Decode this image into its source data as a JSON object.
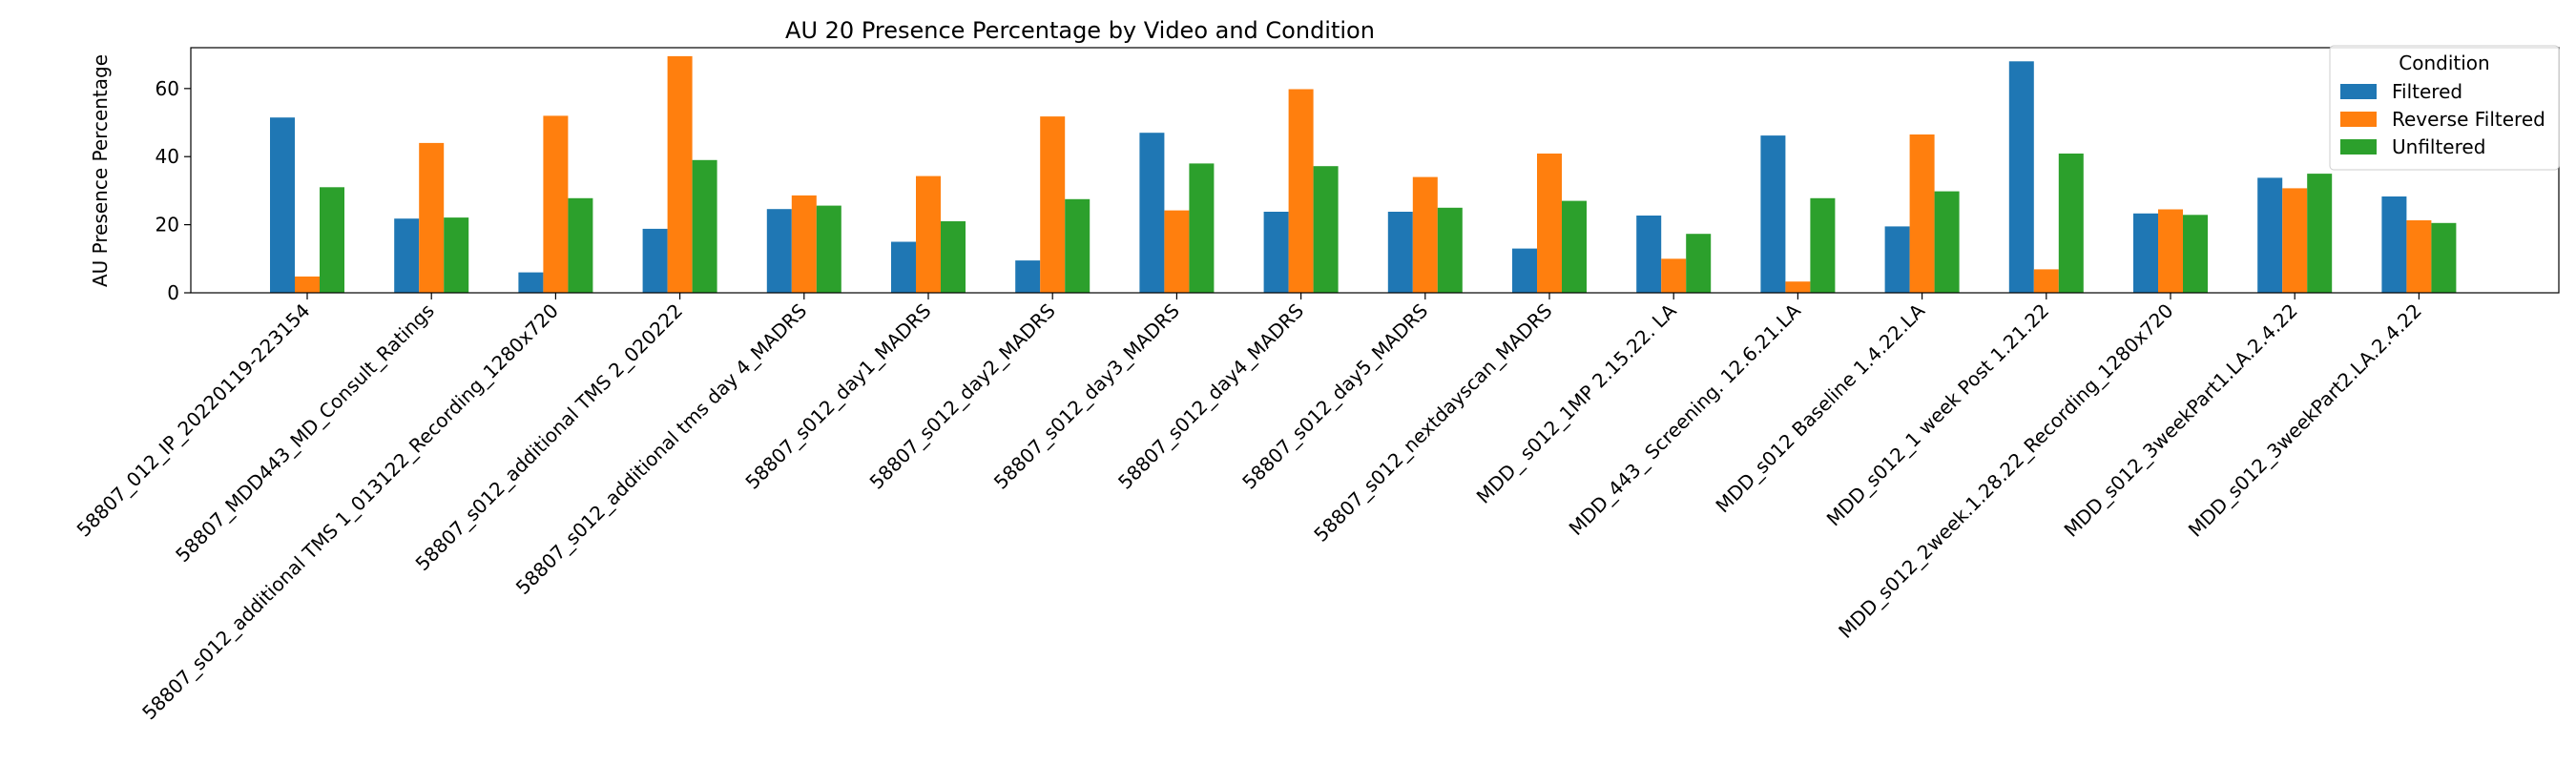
{
  "chart_data": {
    "type": "bar",
    "title": "AU 20 Presence Percentage by Video and Condition",
    "xlabel": "",
    "ylabel": "AU Presence Percentage",
    "ylim": [
      0,
      72
    ],
    "yticks": [
      0,
      20,
      40,
      60
    ],
    "grid": false,
    "legend": {
      "title": "Condition",
      "placement": "top-right"
    },
    "categories": [
      "58807_012_IP_20220119-223154",
      "58807_MDD443_MD_Consult_Ratings",
      "58807_s012_additional TMS 1_013122_Recording_1280x720",
      "58807_s012_additional TMS 2_020222",
      "58807_s012_additional tms day 4_MADRS",
      "58807_s012_day1_MADRS",
      "58807_s012_day2_MADRS",
      "58807_s012_day3_MADRS",
      "58807_s012_day4_MADRS",
      "58807_s012_day5_MADRS",
      "58807_s012_nextdayscan_MADRS",
      "MDD_ s012_1MP  2.15.22. LA",
      "MDD_443_ Screening. 12.6.21.LA",
      "MDD_s012 Baseline 1.4.22.LA",
      "MDD_s012_1 week Post 1.21.22",
      "MDD_s012_2week.1.28.22_Recording_1280x720",
      "MDD_s012_3weekPart1.LA.2.4.22",
      "MDD_s012_3weekPart2.LA.2.4.22"
    ],
    "series": [
      {
        "name": "Filtered",
        "color": "#1f77b4",
        "values": [
          51.5,
          21.8,
          6.0,
          18.8,
          24.6,
          15.0,
          9.5,
          47.0,
          23.8,
          23.8,
          13.0,
          22.7,
          46.2,
          19.5,
          68.0,
          23.3,
          33.8,
          28.3
        ]
      },
      {
        "name": "Reverse Filtered",
        "color": "#ff7f0e",
        "values": [
          4.8,
          44.0,
          52.0,
          69.5,
          28.6,
          34.3,
          51.8,
          24.2,
          59.8,
          34.0,
          40.9,
          10.0,
          3.3,
          46.5,
          6.9,
          24.5,
          30.7,
          21.3
        ]
      },
      {
        "name": "Unfiltered",
        "color": "#2ca02c",
        "values": [
          31.0,
          22.1,
          27.8,
          39.0,
          25.6,
          21.0,
          27.5,
          38.0,
          37.2,
          25.0,
          27.0,
          17.3,
          27.8,
          29.8,
          40.9,
          22.9,
          35.0,
          20.5
        ]
      }
    ]
  }
}
